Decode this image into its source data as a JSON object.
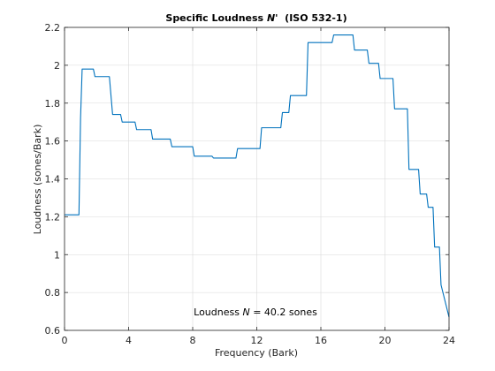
{
  "chart_data": {
    "type": "line",
    "title": "Specific Loudness N'  (ISO 532-1)",
    "title_parts": {
      "prefix": "Specific Loudness ",
      "symbol": "N'",
      "suffix": "  (ISO 532-1)"
    },
    "xlabel": "Frequency (Bark)",
    "ylabel": "Loudness (sones/Bark)",
    "xlim": [
      0,
      24
    ],
    "ylim": [
      0.6,
      2.2
    ],
    "xticks": [
      0,
      4,
      8,
      12,
      16,
      20,
      24
    ],
    "yticks": [
      0.6,
      0.8,
      1.0,
      1.2,
      1.4,
      1.6,
      1.8,
      2.0,
      2.2
    ],
    "ytick_labels": [
      "0.6",
      "0.8",
      "1",
      "1.2",
      "1.4",
      "1.6",
      "1.8",
      "2",
      "2.2"
    ],
    "grid": true,
    "annotation": {
      "text": "Loudness N = 40.2 sones",
      "prefix": "Loudness ",
      "symbol": "N",
      "suffix": " = 40.2 sones"
    },
    "series": [
      {
        "color": "#0072bd",
        "x": [
          0,
          0.9,
          1.0,
          1.1,
          1.8,
          1.9,
          2.8,
          2.9,
          3.0,
          3.5,
          3.6,
          4.4,
          4.5,
          5.4,
          5.5,
          6.6,
          6.7,
          8.0,
          8.1,
          9.2,
          9.3,
          10.7,
          10.8,
          12.2,
          12.3,
          13.5,
          13.6,
          14.0,
          14.1,
          15.1,
          15.2,
          16.7,
          16.8,
          18.0,
          18.1,
          18.9,
          19.0,
          19.6,
          19.7,
          20.5,
          20.6,
          21.4,
          21.5,
          22.1,
          22.2,
          22.6,
          22.7,
          23.0,
          23.1,
          23.4,
          23.5,
          24.0
        ],
        "y": [
          1.21,
          1.21,
          1.72,
          1.98,
          1.98,
          1.94,
          1.94,
          1.84,
          1.74,
          1.74,
          1.7,
          1.7,
          1.66,
          1.66,
          1.61,
          1.61,
          1.57,
          1.57,
          1.52,
          1.52,
          1.51,
          1.51,
          1.56,
          1.56,
          1.67,
          1.67,
          1.75,
          1.75,
          1.84,
          1.84,
          2.12,
          2.12,
          2.16,
          2.16,
          2.08,
          2.08,
          2.01,
          2.01,
          1.93,
          1.93,
          1.77,
          1.77,
          1.45,
          1.45,
          1.32,
          1.32,
          1.25,
          1.25,
          1.04,
          1.04,
          0.84,
          0.67
        ]
      }
    ]
  }
}
